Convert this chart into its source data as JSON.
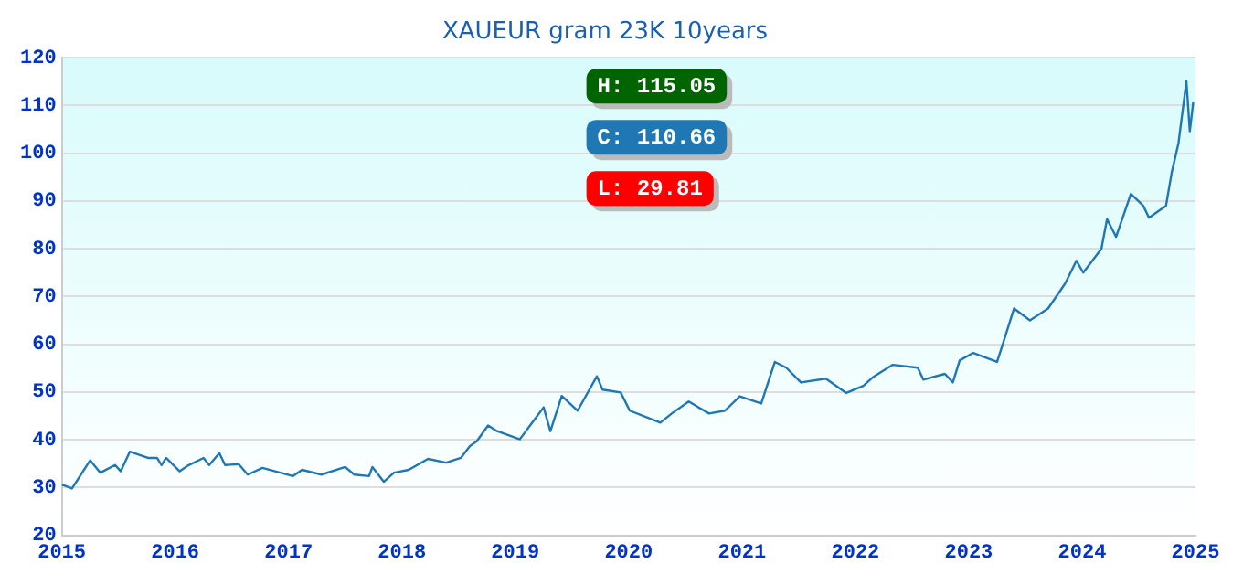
{
  "chart_data": {
    "type": "line",
    "title": "XAUEUR gram 23K 10years",
    "x": [
      2015.0,
      2015.09,
      2015.25,
      2015.34,
      2015.47,
      2015.52,
      2015.6,
      2015.76,
      2015.84,
      2015.88,
      2015.92,
      2016.04,
      2016.12,
      2016.25,
      2016.3,
      2016.39,
      2016.44,
      2016.56,
      2016.64,
      2016.77,
      2017.04,
      2017.12,
      2017.29,
      2017.5,
      2017.58,
      2017.71,
      2017.74,
      2017.84,
      2017.93,
      2018.06,
      2018.23,
      2018.39,
      2018.52,
      2018.6,
      2018.66,
      2018.76,
      2018.84,
      2019.04,
      2019.15,
      2019.25,
      2019.31,
      2019.41,
      2019.55,
      2019.72,
      2019.77,
      2019.93,
      2020.01,
      2020.28,
      2020.38,
      2020.53,
      2020.71,
      2020.85,
      2020.98,
      2021.17,
      2021.29,
      2021.39,
      2021.52,
      2021.74,
      2021.92,
      2022.07,
      2022.16,
      2022.33,
      2022.55,
      2022.6,
      2022.79,
      2022.86,
      2022.92,
      2023.04,
      2023.25,
      2023.3,
      2023.4,
      2023.54,
      2023.7,
      2023.85,
      2023.95,
      2024.01,
      2024.17,
      2024.22,
      2024.3,
      2024.43,
      2024.54,
      2024.59,
      2024.74,
      2024.79,
      2024.85,
      2024.92,
      2024.95,
      2024.98
    ],
    "series": [
      {
        "color": "#1f77b4",
        "values": [
          30.6,
          29.8,
          35.7,
          33.1,
          34.7,
          33.4,
          37.5,
          36.2,
          36.2,
          34.7,
          36.2,
          33.4,
          34.7,
          36.2,
          34.7,
          37.2,
          34.7,
          34.9,
          32.7,
          34.1,
          32.4,
          33.7,
          32.7,
          34.3,
          32.7,
          32.4,
          34.3,
          31.2,
          33.1,
          33.7,
          36.0,
          35.2,
          36.2,
          38.7,
          39.7,
          43.0,
          41.8,
          40.1,
          43.6,
          46.8,
          41.8,
          49.2,
          46.1,
          53.3,
          50.5,
          49.9,
          46.1,
          43.6,
          45.5,
          48.0,
          45.5,
          46.1,
          49.1,
          47.6,
          56.3,
          55.1,
          52.0,
          52.8,
          49.8,
          51.3,
          53.2,
          55.7,
          55.1,
          52.6,
          53.8,
          52.0,
          56.6,
          58.2,
          56.3,
          60.0,
          67.5,
          65.0,
          67.5,
          72.7,
          77.5,
          75.0,
          80.0,
          86.2,
          82.5,
          91.5,
          89.0,
          86.5,
          89.0,
          95.9,
          102.1,
          115.05,
          104.6,
          110.66
        ]
      }
    ],
    "xlim": [
      2015,
      2025
    ],
    "xticks": [
      2015,
      2016,
      2017,
      2018,
      2019,
      2020,
      2021,
      2022,
      2023,
      2024,
      2025
    ],
    "ylim": [
      20,
      120
    ],
    "yticks": [
      20,
      30,
      40,
      50,
      60,
      70,
      80,
      90,
      100,
      110,
      120
    ],
    "grid": "y",
    "marker": "none",
    "line_style": "solid",
    "annotations": [
      "H: 115.05",
      "C: 110.66",
      "L: 29.81"
    ]
  }
}
